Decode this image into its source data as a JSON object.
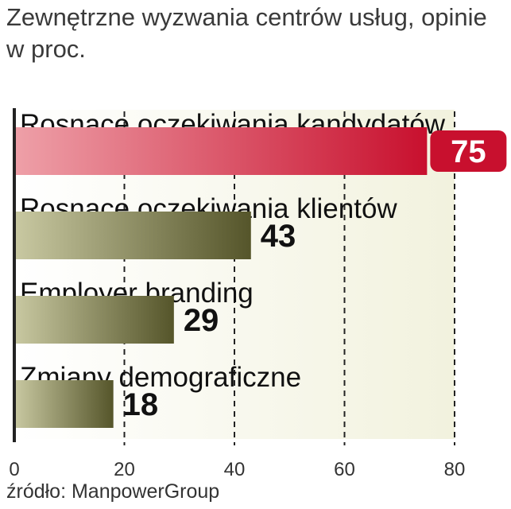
{
  "chart_data": {
    "type": "bar",
    "orientation": "horizontal",
    "title": "Zewnętrzne wyzwania centrów usług, opinie w proc.",
    "categories": [
      "Rosnące oczekiwania kandydatów",
      "Rosnące oczekiwania klientów",
      "Employer branding",
      "Zmiany demograficzne"
    ],
    "values": [
      75,
      43,
      29,
      18
    ],
    "xlim": [
      0,
      80
    ],
    "xticks": [
      0,
      20,
      40,
      60,
      80
    ],
    "grid": true,
    "highlight_index": 0,
    "colors": {
      "highlight": "#c8102e",
      "highlight_light": "#f0a0a6",
      "bar": "#5a5a2a",
      "bar_light": "#c8c8a0",
      "plot_bg_light": "#f5f5e6",
      "axis": "#222222"
    }
  },
  "source": "źródło: ManpowerGroup"
}
